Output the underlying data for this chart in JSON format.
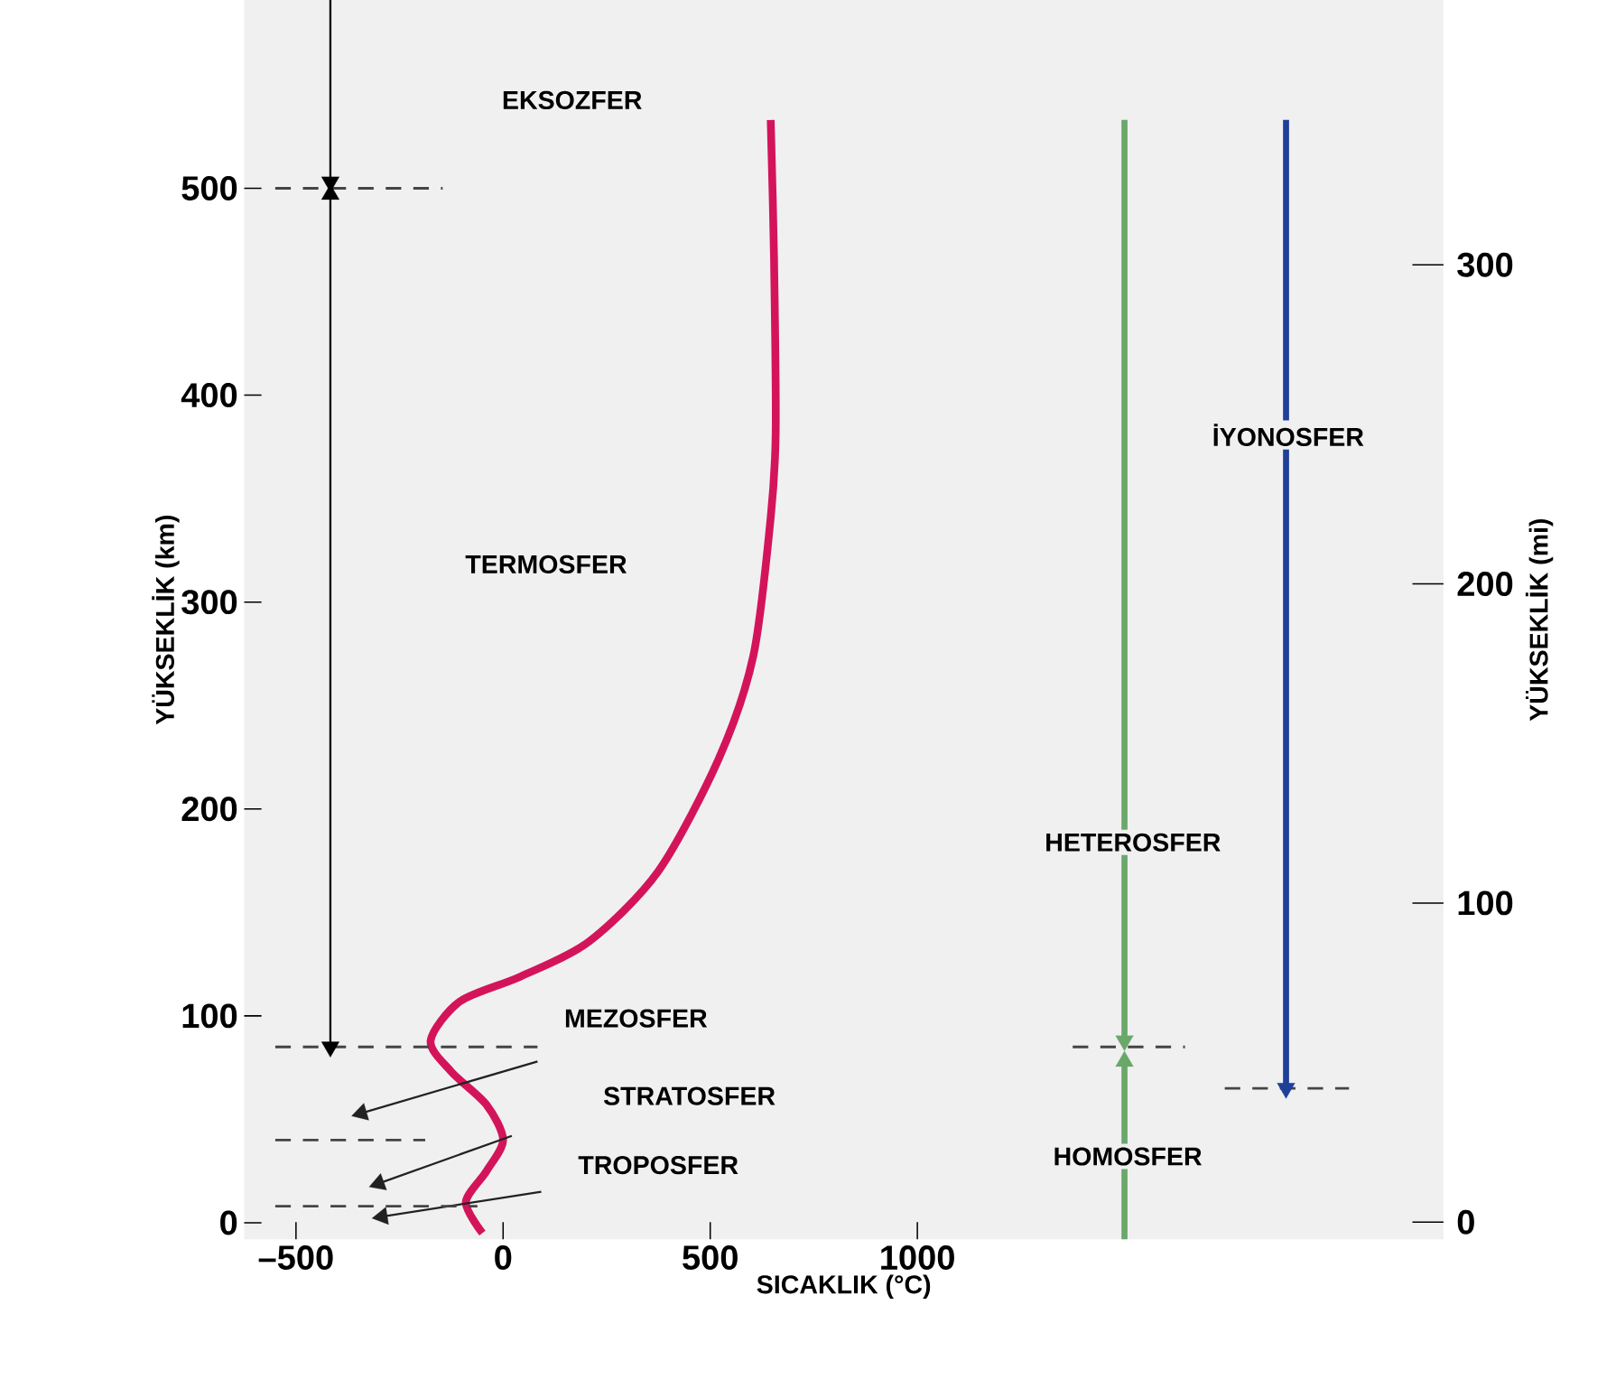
{
  "chart_data": {
    "type": "line",
    "xlabel": "SICAKLIK (°C)",
    "ylabel": "YÜKSEKLİK (km)",
    "y2label": "YÜKSEKLİK (mi)",
    "xlim": [
      -625,
      2270
    ],
    "ylim": [
      -8,
      591
    ],
    "y2lim": [
      -5.4,
      383
    ],
    "xticks": [
      {
        "value": -500,
        "label": "–500"
      },
      0,
      500,
      1000
    ],
    "yticks": [
      0,
      100,
      200,
      300,
      400,
      500
    ],
    "y2ticks": [
      0,
      100,
      200,
      300
    ],
    "series": [
      {
        "color": "#d4145a",
        "x": [
          -50,
          -90,
          -40,
          0,
          -40,
          -125,
          -175,
          -104,
          42,
          208,
          375,
          520,
          604,
          646,
          658,
          654,
          646
        ],
        "values": [
          -5,
          10,
          25,
          40,
          57,
          73,
          88,
          107,
          119,
          136,
          170,
          224,
          274,
          341,
          382,
          466,
          533
        ]
      },
      {
        "color": "#000000",
        "marker": "triangle",
        "x": [
          -417,
          -417
        ],
        "values": [
          591,
          503
        ]
      },
      {
        "color": "#000000",
        "marker": "triangle",
        "x": [
          -417,
          -417,
          -417
        ],
        "values": [
          85,
          290,
          497
        ]
      },
      {
        "color": "#6aa86a",
        "marker": "triangle",
        "x": [
          1500,
          1500
        ],
        "values": [
          533,
          88
        ]
      },
      {
        "color": "#6aa86a",
        "marker": "triangle",
        "x": [
          1500,
          1500
        ],
        "values": [
          -8,
          78
        ]
      },
      {
        "color": "#1f3f99",
        "marker": "triangle",
        "x": [
          1890,
          1890
        ],
        "values": [
          533,
          65
        ]
      },
      {
        "color": "#222222",
        "marker": "triangle",
        "x": [
          83,
          -342
        ],
        "values": [
          78,
          53
        ]
      },
      {
        "color": "#222222",
        "marker": "triangle",
        "x": [
          21,
          -300
        ],
        "values": [
          42,
          19
        ]
      },
      {
        "color": "#222222",
        "marker": "triangle",
        "x": [
          92,
          -292
        ],
        "values": [
          15,
          3
        ]
      },
      {
        "color": "#444444",
        "line_style": "dashed",
        "x": [
          -550,
          -146
        ],
        "values": [
          500,
          500
        ]
      },
      {
        "color": "#444444",
        "line_style": "dashed",
        "x": [
          -550,
          83
        ],
        "values": [
          85,
          85
        ]
      },
      {
        "color": "#444444",
        "line_style": "dashed",
        "x": [
          -550,
          -188
        ],
        "values": [
          40,
          40
        ]
      },
      {
        "color": "#444444",
        "line_style": "dashed",
        "x": [
          -550,
          -62
        ],
        "values": [
          8,
          8
        ]
      },
      {
        "color": "#444444",
        "line_style": "dashed",
        "x": [
          1375,
          1646
        ],
        "values": [
          85,
          85
        ]
      },
      {
        "color": "#444444",
        "line_style": "dashed",
        "x": [
          1742,
          2042
        ],
        "values": [
          65,
          65
        ]
      }
    ],
    "annotations": [
      "EKSOZFER",
      "TERMOSFER",
      "MEZOSFER",
      "STRATOSFER",
      "TROPOSFER",
      "HETEROSFER",
      "HOMOSFER",
      "İYONOSFER"
    ]
  }
}
